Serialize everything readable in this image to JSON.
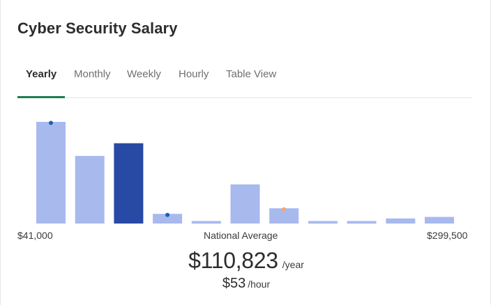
{
  "title": "Cyber Security Salary",
  "tabs": [
    {
      "label": "Yearly",
      "active": true
    },
    {
      "label": "Monthly",
      "active": false
    },
    {
      "label": "Weekly",
      "active": false
    },
    {
      "label": "Hourly",
      "active": false
    },
    {
      "label": "Table View",
      "active": false
    }
  ],
  "colors": {
    "bar": "#a8b9ee",
    "bar_highlight": "#284aa5",
    "marker_blue": "#1a5fb4",
    "marker_orange": "#f5a66b",
    "tab_active_underline": "#1e7d4f"
  },
  "chart_data": {
    "type": "bar",
    "x_min_label": "$41,000",
    "x_max_label": "$299,500",
    "center_label": "National Average",
    "values": [
      100,
      66.5,
      79,
      9.5,
      2.5,
      38.5,
      15,
      2.5,
      2.5,
      5,
      6.5
    ],
    "highlight_index": 2,
    "markers": [
      {
        "bin": 0,
        "color": "blue"
      },
      {
        "bin": 3,
        "color": "blue"
      },
      {
        "bin": 6,
        "color": "orange"
      }
    ]
  },
  "average": {
    "amount": "$110,823",
    "unit": "/year",
    "hourly_amount": "$53",
    "hourly_unit": "/hour"
  }
}
